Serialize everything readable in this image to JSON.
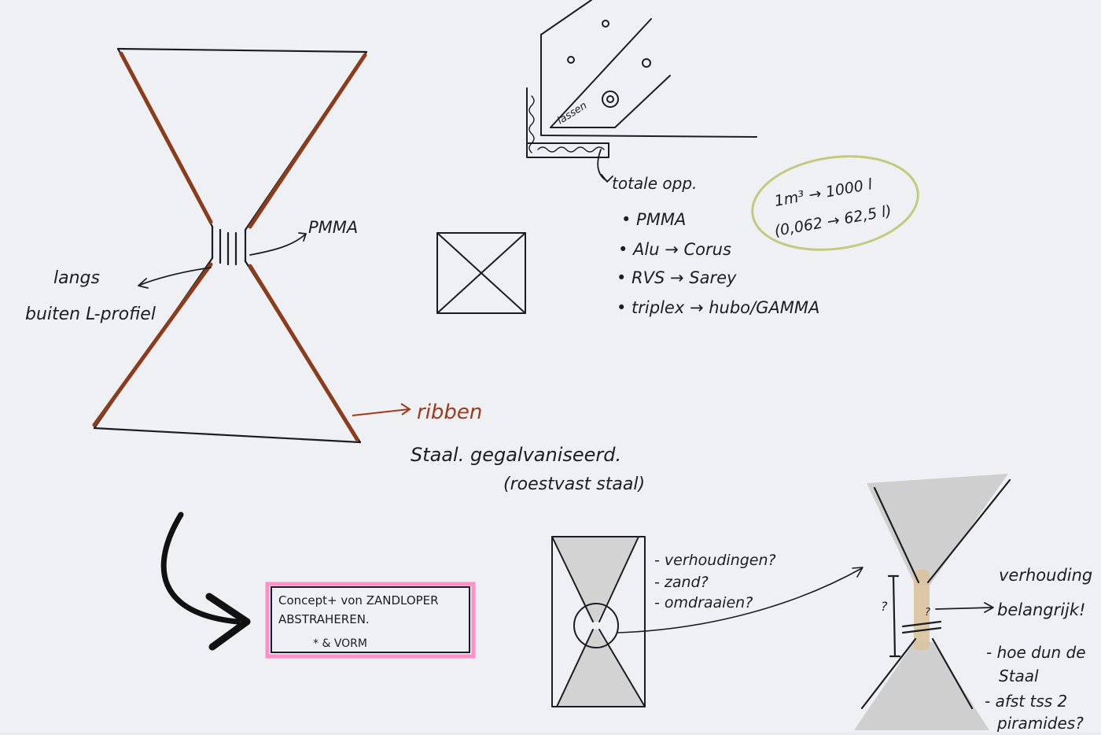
{
  "colors": {
    "paper": "#eef0f3",
    "ink": "#1c1d22",
    "rib_brown": "#8a3c1d",
    "rib_label": "#a13a1a",
    "marker_olive": "#c4c97e",
    "marker_pink": "#ff8fc6",
    "shade_gray": "#c9c9c9",
    "tape_tan": "#d9c39f"
  },
  "labels": {
    "pmma": "PMMA",
    "langs_line1": "langs",
    "langs_line2": "buiten L-profiel",
    "ribben": "ribben",
    "staal_line1": "Staal. gegalvaniseerd.",
    "staal_line2": "(roestvast staal)",
    "lassen": "lassen",
    "totale": "totale opp.",
    "materials": [
      "• PMMA",
      "• Alu → Corus",
      "• RVS → Sarey",
      "• triplex → hubo/GAMMA"
    ],
    "volume_line1": "1m³ → 1000 l",
    "volume_line2": "(0,062 → 62,5 l)",
    "concept_line1": "Concept+ von ZANDLOPER",
    "concept_line2": "ABSTRAHEREN.",
    "concept_line3": "* & VORM",
    "questions": [
      "- verhoudingen?",
      "- zand?",
      "- omdraaien?"
    ],
    "q_mark_left": "?",
    "q_mark_mid": "?",
    "verhouding_line1": "verhouding",
    "verhouding_line2": "belangrijk!",
    "notes": [
      "- hoe dun de",
      "Staal",
      "- afst tss 2",
      "piramides?"
    ]
  },
  "icons": {
    "big_hourglass": "hourglass-sketch-icon",
    "corner_detail": "l-profile-corner-icon",
    "crossed_box": "crossed-square-icon",
    "curved_arrow": "curved-arrow-icon",
    "small_hourglass": "framed-hourglass-icon",
    "shaded_hourglass": "shaded-hourglass-icon"
  }
}
